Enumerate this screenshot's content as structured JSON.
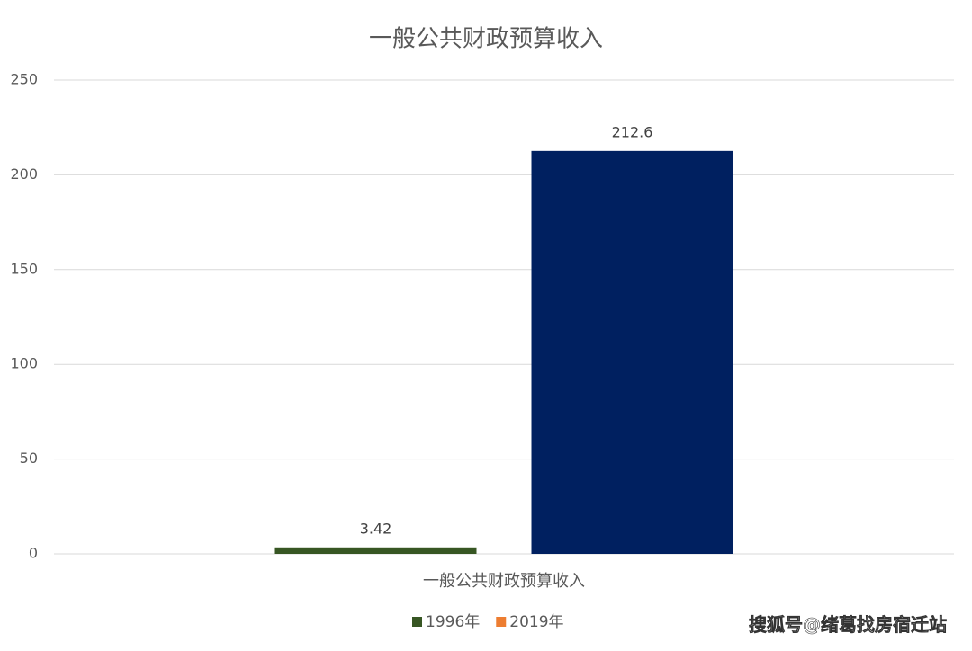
{
  "chart_data": {
    "type": "bar",
    "title": "一般公共财政预算收入",
    "categories": [
      "一般公共财政预算收入"
    ],
    "series": [
      {
        "name": "1996年",
        "color": "#375623",
        "bar_color": "#375623",
        "values": [
          3.42
        ]
      },
      {
        "name": "2019年",
        "color": "#ed7d31",
        "bar_color": "#002060",
        "values": [
          212.6
        ]
      }
    ],
    "ylim": [
      0,
      250
    ],
    "yticks": [
      0,
      50,
      100,
      150,
      200,
      250
    ],
    "grid": true,
    "legend": "bottom",
    "watermark": "搜狐号@绪葛找房宿迁站"
  }
}
